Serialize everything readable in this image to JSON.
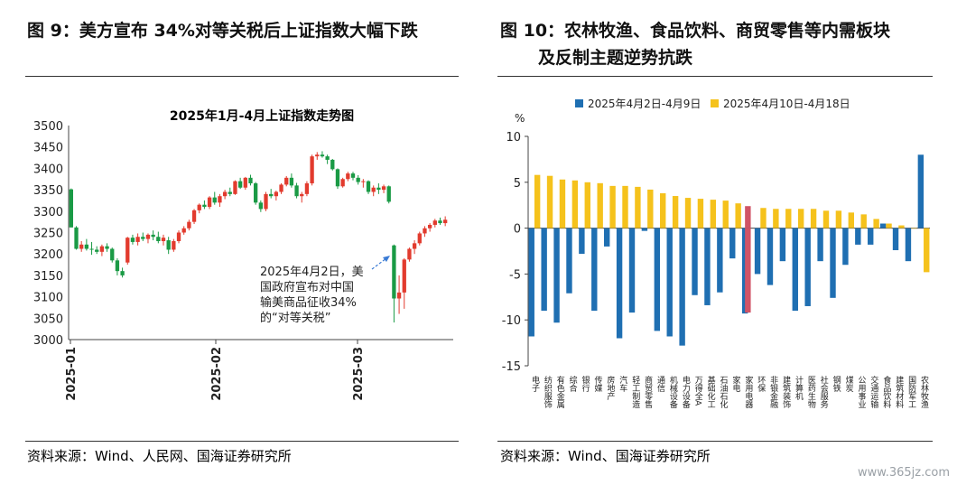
{
  "left_figure": {
    "caption": "图 9：美方宣布 34%对等关税后上证指数大幅下跌",
    "source": "资料来源：Wind、人民网、国海证券研究所"
  },
  "right_figure": {
    "caption_line1": "图 10：农林牧渔、食品饮料、商贸零售等内需板块",
    "caption_line2": "及反制主题逆势抗跌",
    "source": "资料来源：Wind、国海证券研究所"
  },
  "watermark": "www.365jz.com",
  "chart_data": [
    {
      "type": "candlestick",
      "title": "2025年1月-4月上证指数走势图",
      "ylim": [
        3000,
        3500
      ],
      "yticks": [
        3000,
        3050,
        3100,
        3150,
        3200,
        3250,
        3300,
        3350,
        3400,
        3450,
        3500
      ],
      "xticks": [
        "2025-01",
        "2025-02",
        "2025-03"
      ],
      "annotation": [
        "2025年4月2日，美",
        "国政府宣布对中国",
        "输美商品征收34%",
        "的“对等关税”"
      ],
      "colors": {
        "up": "#e23b2e",
        "down": "#1a9a45"
      },
      "candles": [
        [
          3351,
          3353,
          3262,
          3262
        ],
        [
          3262,
          3265,
          3210,
          3212
        ],
        [
          3212,
          3230,
          3205,
          3222
        ],
        [
          3222,
          3235,
          3208,
          3212
        ],
        [
          3212,
          3228,
          3198,
          3210
        ],
        [
          3210,
          3218,
          3200,
          3205
        ],
        [
          3205,
          3222,
          3195,
          3218
        ],
        [
          3218,
          3225,
          3205,
          3212
        ],
        [
          3212,
          3215,
          3180,
          3185
        ],
        [
          3185,
          3190,
          3150,
          3160
        ],
        [
          3160,
          3168,
          3145,
          3150
        ],
        [
          3180,
          3240,
          3175,
          3238
        ],
        [
          3238,
          3245,
          3222,
          3228
        ],
        [
          3228,
          3248,
          3220,
          3240
        ],
        [
          3240,
          3250,
          3230,
          3235
        ],
        [
          3235,
          3248,
          3225,
          3245
        ],
        [
          3245,
          3255,
          3232,
          3240
        ],
        [
          3240,
          3252,
          3225,
          3230
        ],
        [
          3230,
          3245,
          3220,
          3238
        ],
        [
          3232,
          3240,
          3200,
          3210
        ],
        [
          3210,
          3235,
          3205,
          3230
        ],
        [
          3230,
          3255,
          3225,
          3250
        ],
        [
          3250,
          3265,
          3245,
          3260
        ],
        [
          3260,
          3280,
          3255,
          3275
        ],
        [
          3275,
          3305,
          3270,
          3302
        ],
        [
          3302,
          3318,
          3295,
          3315
        ],
        [
          3315,
          3325,
          3305,
          3310
        ],
        [
          3310,
          3335,
          3305,
          3332
        ],
        [
          3332,
          3345,
          3315,
          3320
        ],
        [
          3320,
          3340,
          3310,
          3335
        ],
        [
          3335,
          3350,
          3328,
          3345
        ],
        [
          3345,
          3355,
          3335,
          3340
        ],
        [
          3340,
          3372,
          3338,
          3370
        ],
        [
          3370,
          3378,
          3352,
          3355
        ],
        [
          3355,
          3380,
          3350,
          3378
        ],
        [
          3378,
          3385,
          3360,
          3365
        ],
        [
          3365,
          3368,
          3315,
          3320
        ],
        [
          3320,
          3325,
          3298,
          3305
        ],
        [
          3305,
          3345,
          3300,
          3340
        ],
        [
          3340,
          3352,
          3330,
          3335
        ],
        [
          3335,
          3348,
          3325,
          3345
        ],
        [
          3345,
          3365,
          3340,
          3362
        ],
        [
          3362,
          3382,
          3358,
          3378
        ],
        [
          3378,
          3388,
          3355,
          3360
        ],
        [
          3360,
          3366,
          3330,
          3335
        ],
        [
          3335,
          3345,
          3320,
          3340
        ],
        [
          3340,
          3370,
          3335,
          3365
        ],
        [
          3365,
          3432,
          3360,
          3428
        ],
        [
          3428,
          3438,
          3420,
          3432
        ],
        [
          3432,
          3440,
          3425,
          3428
        ],
        [
          3428,
          3432,
          3410,
          3420
        ],
        [
          3420,
          3422,
          3395,
          3398
        ],
        [
          3398,
          3400,
          3352,
          3358
        ],
        [
          3358,
          3378,
          3355,
          3375
        ],
        [
          3375,
          3392,
          3370,
          3388
        ],
        [
          3388,
          3392,
          3372,
          3378
        ],
        [
          3378,
          3384,
          3362,
          3368
        ],
        [
          3368,
          3375,
          3355,
          3370
        ],
        [
          3370,
          3372,
          3340,
          3345
        ],
        [
          3345,
          3360,
          3335,
          3355
        ],
        [
          3355,
          3365,
          3340,
          3350
        ],
        [
          3350,
          3362,
          3342,
          3358
        ],
        [
          3358,
          3360,
          3318,
          3322
        ],
        [
          3220,
          3222,
          3040,
          3096
        ],
        [
          3096,
          3150,
          3060,
          3110
        ],
        [
          3110,
          3190,
          3072,
          3187
        ],
        [
          3187,
          3215,
          3182,
          3212
        ],
        [
          3212,
          3232,
          3200,
          3225
        ],
        [
          3225,
          3252,
          3220,
          3248
        ],
        [
          3248,
          3265,
          3240,
          3260
        ],
        [
          3260,
          3272,
          3252,
          3268
        ],
        [
          3268,
          3282,
          3262,
          3278
        ],
        [
          3278,
          3285,
          3268,
          3272
        ],
        [
          3272,
          3288,
          3265,
          3280
        ]
      ]
    },
    {
      "type": "bar",
      "ylabel": "%",
      "ylim": [
        -15,
        10
      ],
      "yticks": [
        -15,
        -10,
        -5,
        0,
        5,
        10
      ],
      "series": [
        {
          "name": "2025年4月2日-4月9日",
          "color": "#1f6fb2",
          "values": [
            -11.8,
            -9,
            -10.3,
            -7.1,
            -2.8,
            -9,
            -2,
            -12,
            -9.2,
            -0.3,
            -11.2,
            -11.8,
            -12.8,
            -7.3,
            -8.4,
            -7,
            -3.3,
            -9.3,
            -5,
            -6.2,
            -3.6,
            -9,
            -8.5,
            -3.6,
            -7.6,
            -4,
            -1.8,
            -1.8,
            0.5,
            -2.4,
            -3.6,
            8
          ]
        },
        {
          "name": "2025年4月10日-4月18日",
          "color": "#f5c21c",
          "values": [
            5.8,
            5.7,
            5.3,
            5.2,
            5,
            4.9,
            4.6,
            4.6,
            4.5,
            4.2,
            3.8,
            3.5,
            3.3,
            3.2,
            3.1,
            3,
            2.7,
            null,
            2.2,
            2.1,
            2.1,
            2.1,
            2.1,
            1.9,
            1.9,
            1.7,
            1.5,
            1,
            0.5,
            0.3,
            0,
            -4.8
          ]
        }
      ],
      "highlight": {
        "index": 17,
        "value_pos": 2.4,
        "value_neg": -9.2,
        "color": "#d05466"
      },
      "categories": [
        "电子",
        "纺织服饰",
        "有色金属",
        "综合",
        "银行",
        "传媒",
        "房地产",
        "汽车",
        "轻工制造",
        "商贸零售",
        "通信",
        "机械设备",
        "电力设备",
        "万得全A",
        "基础化工",
        "石油石化",
        "家电",
        "家用电器",
        "环保",
        "非银金融",
        "建筑装饰",
        "计算机",
        "医药生物",
        "社会服务",
        "钢铁",
        "煤炭",
        "公用事业",
        "交通运输",
        "食品饮料",
        "建筑材料",
        "国防军工",
        "农林牧渔"
      ]
    }
  ]
}
